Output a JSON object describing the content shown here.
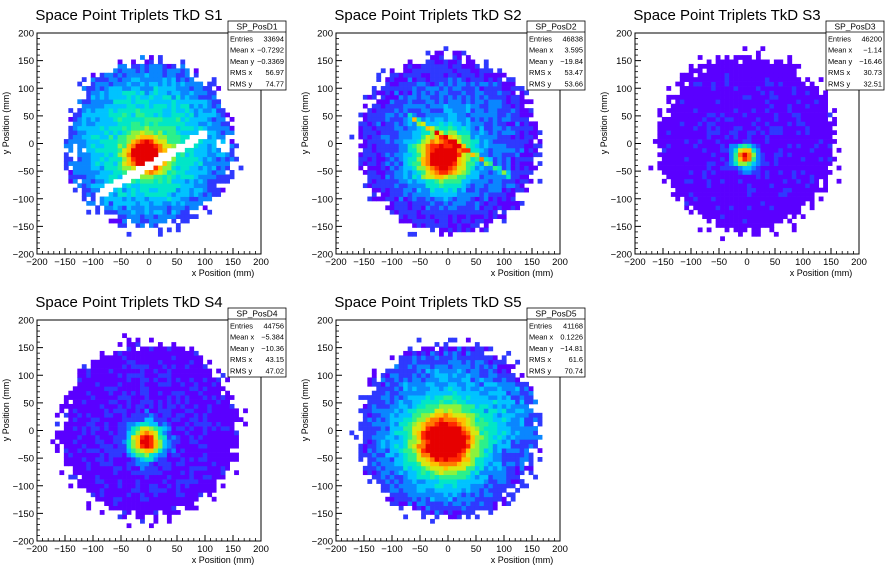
{
  "chart_data": [
    {
      "type": "heatmap",
      "title": "Space Point Triplets TkD S1",
      "xlabel": "x Position (mm)",
      "ylabel": "y Position (mm)",
      "xlim": [
        -200,
        200
      ],
      "ylim": [
        -200,
        200
      ],
      "xticks": [
        "−200",
        "−150",
        "−100",
        "−50",
        "0",
        "50",
        "100",
        "150",
        "200"
      ],
      "yticks": [
        "−200",
        "−150",
        "−100",
        "−50",
        "0",
        "50",
        "100",
        "150",
        "200"
      ],
      "stats": {
        "name": "SP_PosD1",
        "rows": [
          {
            "label": "Entries",
            "value": "33694"
          },
          {
            "label": "Mean x",
            "value": "−0.7292"
          },
          {
            "label": "Mean y",
            "value": "−0.3369"
          },
          {
            "label": "RMS x",
            "value": "56.97"
          },
          {
            "label": "RMS y",
            "value": "74.77"
          }
        ]
      },
      "distribution": {
        "radius": 150,
        "core_x": -5,
        "core_y": -22,
        "core_sigma": 22,
        "base_level": 0.42,
        "gap_slope": 0.58,
        "gap_offset": -40,
        "gap_half_width": 9,
        "gap_x_min": -100,
        "gap_x_max": 105,
        "side_windows": true,
        "cross_band": false
      }
    },
    {
      "type": "heatmap",
      "title": "Space Point Triplets TkD S2",
      "xlabel": "x Position (mm)",
      "ylabel": "y Position (mm)",
      "xlim": [
        -200,
        200
      ],
      "ylim": [
        -200,
        200
      ],
      "xticks": [
        "−200",
        "−150",
        "−100",
        "−50",
        "0",
        "50",
        "100",
        "150",
        "200"
      ],
      "yticks": [
        "−200",
        "−150",
        "−100",
        "−50",
        "0",
        "50",
        "100",
        "150",
        "200"
      ],
      "stats": {
        "name": "SP_PosD2",
        "rows": [
          {
            "label": "Entries",
            "value": "46838"
          },
          {
            "label": "Mean x",
            "value": "3.595"
          },
          {
            "label": "Mean y",
            "value": "−19.84"
          },
          {
            "label": "RMS x",
            "value": "53.47"
          },
          {
            "label": "RMS y",
            "value": "53.66"
          }
        ]
      },
      "distribution": {
        "radius": 160,
        "core_x": -10,
        "core_y": -25,
        "core_sigma": 30,
        "base_level": 0.22,
        "cross_band": true,
        "band_slope": -0.6,
        "band_offset": 8,
        "band_half_width": 7
      }
    },
    {
      "type": "heatmap",
      "title": "Space Point Triplets TkD S3",
      "xlabel": "x Position (mm)",
      "ylabel": "y Position (mm)",
      "xlim": [
        -200,
        200
      ],
      "ylim": [
        -200,
        200
      ],
      "xticks": [
        "−200",
        "−150",
        "−100",
        "−50",
        "0",
        "50",
        "100",
        "150",
        "200"
      ],
      "yticks": [
        "−200",
        "−150",
        "−100",
        "−50",
        "0",
        "50",
        "100",
        "150",
        "200"
      ],
      "stats": {
        "name": "SP_PosD3",
        "rows": [
          {
            "label": "Entries",
            "value": "46200"
          },
          {
            "label": "Mean x",
            "value": "−1.14"
          },
          {
            "label": "Mean y",
            "value": "−16.46"
          },
          {
            "label": "RMS x",
            "value": "30.73"
          },
          {
            "label": "RMS y",
            "value": "32.51"
          }
        ]
      },
      "distribution": {
        "radius": 158,
        "core_x": -3,
        "core_y": -22,
        "core_sigma": 13,
        "base_level": 0.05,
        "cross_band": false
      }
    },
    {
      "type": "heatmap",
      "title": "Space Point Triplets TkD S4",
      "xlabel": "x Position (mm)",
      "ylabel": "y Position (mm)",
      "xlim": [
        -200,
        200
      ],
      "ylim": [
        -200,
        200
      ],
      "xticks": [
        "−200",
        "−150",
        "−100",
        "−50",
        "0",
        "50",
        "100",
        "150",
        "200"
      ],
      "yticks": [
        "−200",
        "−150",
        "−100",
        "−50",
        "0",
        "50",
        "100",
        "150",
        "200"
      ],
      "stats": {
        "name": "SP_PosD4",
        "rows": [
          {
            "label": "Entries",
            "value": "44756"
          },
          {
            "label": "Mean x",
            "value": "−5.384"
          },
          {
            "label": "Mean y",
            "value": "−10.36"
          },
          {
            "label": "RMS x",
            "value": "43.15"
          },
          {
            "label": "RMS y",
            "value": "47.02"
          }
        ]
      },
      "distribution": {
        "radius": 158,
        "core_x": -5,
        "core_y": -18,
        "core_sigma": 20,
        "base_level": 0.08,
        "cross_band": false
      }
    },
    {
      "type": "heatmap",
      "title": "Space Point Triplets TkD S5",
      "xlabel": "x Position (mm)",
      "ylabel": "y Position (mm)",
      "xlim": [
        -200,
        200
      ],
      "ylim": [
        -200,
        200
      ],
      "xticks": [
        "−200",
        "−150",
        "−100",
        "−50",
        "0",
        "50",
        "100",
        "150",
        "200"
      ],
      "yticks": [
        "−200",
        "−150",
        "−100",
        "−50",
        "0",
        "50",
        "100",
        "150",
        "200"
      ],
      "stats": {
        "name": "SP_PosD5",
        "rows": [
          {
            "label": "Entries",
            "value": "41168"
          },
          {
            "label": "Mean x",
            "value": "0.1226"
          },
          {
            "label": "Mean y",
            "value": "−14.81"
          },
          {
            "label": "RMS x",
            "value": "61.6"
          },
          {
            "label": "RMS y",
            "value": "70.74"
          }
        ]
      },
      "distribution": {
        "radius": 160,
        "core_x": -5,
        "core_y": -20,
        "core_sigma": 38,
        "base_level": 0.3,
        "cross_band": false,
        "right_edge": true
      }
    }
  ],
  "colors": {
    "background": "#ffffff",
    "axis": "#000000",
    "palette": [
      "#5a00ff",
      "#2f39ff",
      "#0a86ff",
      "#00c3ff",
      "#00e6c8",
      "#2cf08a",
      "#8cf23c",
      "#d8e810",
      "#ffc000",
      "#ff7a00",
      "#ff2a00",
      "#e60000"
    ]
  }
}
